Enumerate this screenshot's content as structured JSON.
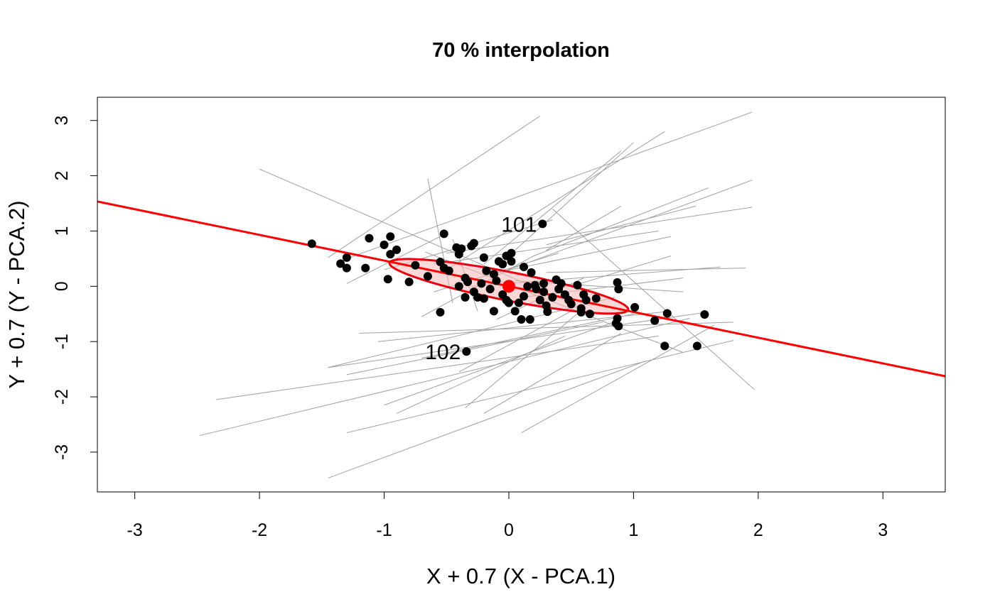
{
  "chart_data": {
    "type": "scatter",
    "title": "70 % interpolation",
    "xlabel": "X + 0.7 (X - PCA.1)",
    "ylabel": "Y + 0.7 (Y - PCA.2)",
    "xlim": [
      -3.3,
      3.5
    ],
    "ylim": [
      -3.72,
      3.42
    ],
    "x_ticks": [
      -3,
      -2,
      -1,
      0,
      1,
      2,
      3
    ],
    "y_ticks": [
      -3,
      -2,
      -1,
      0,
      1,
      2,
      3
    ],
    "grid": false,
    "colors": {
      "points": "#000000",
      "segments": "#a0a0a0",
      "fit_line": "#ff0000",
      "ellipse_stroke": "#e8000f",
      "ellipse_fill": "#f6b8b8",
      "center": "#ff0000"
    },
    "fit_line": {
      "intercept": 0.0,
      "slope": -0.465
    },
    "ellipse": {
      "center": [
        0,
        0
      ],
      "semi_axis_major": 1.05,
      "semi_axis_minor": 0.24,
      "angle_deg": -24.94
    },
    "center_point": [
      0,
      0
    ],
    "points": [
      [
        -1.58,
        0.77
      ],
      [
        -1.3,
        0.52
      ],
      [
        -1.35,
        0.41
      ],
      [
        -1.3,
        0.33
      ],
      [
        -1.15,
        0.33
      ],
      [
        -1.12,
        0.87
      ],
      [
        -1.0,
        0.75
      ],
      [
        -0.95,
        0.9
      ],
      [
        -0.9,
        0.66
      ],
      [
        -0.95,
        0.58
      ],
      [
        -0.97,
        0.13
      ],
      [
        -0.8,
        0.08
      ],
      [
        -0.75,
        0.38
      ],
      [
        -0.65,
        0.18
      ],
      [
        -0.55,
        0.44
      ],
      [
        -0.55,
        -0.47
      ],
      [
        -0.52,
        0.95
      ],
      [
        -0.52,
        0.33
      ],
      [
        -0.48,
        0.28
      ],
      [
        -0.42,
        0.7
      ],
      [
        -0.4,
        0.58
      ],
      [
        -0.38,
        0.68
      ],
      [
        -0.35,
        0.15
      ],
      [
        -0.33,
        0.08
      ],
      [
        -0.3,
        0.73
      ],
      [
        -0.28,
        0.78
      ],
      [
        -0.35,
        -0.2
      ],
      [
        -0.28,
        -0.1
      ],
      [
        -0.25,
        -0.2
      ],
      [
        -0.2,
        -0.22
      ],
      [
        -0.22,
        0.05
      ],
      [
        -0.18,
        0.28
      ],
      [
        -0.15,
        -0.05
      ],
      [
        -0.12,
        0.22
      ],
      [
        -0.1,
        0.1
      ],
      [
        -0.08,
        0.45
      ],
      [
        -0.05,
        0.4
      ],
      [
        -0.02,
        0.55
      ],
      [
        0.02,
        0.45
      ],
      [
        0.02,
        0.6
      ],
      [
        -0.05,
        -0.15
      ],
      [
        -0.02,
        -0.25
      ],
      [
        0.0,
        -0.3
      ],
      [
        0.05,
        -0.45
      ],
      [
        0.08,
        -0.3
      ],
      [
        0.12,
        -0.18
      ],
      [
        0.15,
        0.0
      ],
      [
        0.18,
        0.25
      ],
      [
        0.22,
        -0.05
      ],
      [
        0.25,
        -0.25
      ],
      [
        0.28,
        -0.1
      ],
      [
        0.3,
        -0.35
      ],
      [
        0.35,
        -0.2
      ],
      [
        0.38,
        0.12
      ],
      [
        0.4,
        -0.05
      ],
      [
        0.42,
        0.05
      ],
      [
        0.45,
        -0.15
      ],
      [
        0.48,
        -0.25
      ],
      [
        0.5,
        -0.32
      ],
      [
        0.55,
        0.02
      ],
      [
        0.58,
        -0.4
      ],
      [
        0.6,
        -0.15
      ],
      [
        0.62,
        -0.25
      ],
      [
        0.65,
        -0.5
      ],
      [
        0.7,
        -0.22
      ],
      [
        0.12,
        0.35
      ],
      [
        0.28,
        0.05
      ],
      [
        0.1,
        -0.6
      ],
      [
        0.17,
        -0.6
      ],
      [
        0.31,
        -0.46
      ],
      [
        0.21,
        0.02
      ],
      [
        -0.12,
        -0.45
      ],
      [
        -0.4,
        0.0
      ],
      [
        -0.2,
        0.52
      ],
      [
        0.58,
        -0.47
      ],
      [
        0.86,
        -0.67
      ],
      [
        0.88,
        -0.72
      ],
      [
        0.87,
        -0.58
      ],
      [
        0.87,
        0.07
      ],
      [
        0.88,
        -0.05
      ],
      [
        1.01,
        -0.38
      ],
      [
        1.17,
        -0.62
      ],
      [
        1.27,
        -0.49
      ],
      [
        1.57,
        -0.51
      ],
      [
        1.25,
        -1.08
      ],
      [
        1.51,
        -1.08
      ],
      [
        0.27,
        1.13
      ],
      [
        -0.34,
        -1.18
      ]
    ],
    "labels": [
      {
        "text": "101",
        "x": 0.27,
        "y": 1.13
      },
      {
        "text": "102",
        "x": -0.34,
        "y": -1.18
      }
    ],
    "segments": [
      [
        -2.0,
        2.12,
        0.55,
        -0.35
      ],
      [
        -2.48,
        -2.7,
        1.45,
        -0.58
      ],
      [
        -2.35,
        -2.05,
        1.2,
        -0.9
      ],
      [
        -1.45,
        -1.47,
        1.55,
        -0.48
      ],
      [
        -1.45,
        -1.47,
        0.85,
        -0.2
      ],
      [
        -1.3,
        -2.65,
        1.8,
        -0.98
      ],
      [
        -1.45,
        -3.47,
        1.1,
        -1.35
      ],
      [
        -1.0,
        -2.15,
        0.9,
        -0.6
      ],
      [
        -0.9,
        -2.3,
        0.45,
        -0.9
      ],
      [
        -0.2,
        -2.3,
        0.9,
        -0.85
      ],
      [
        0.1,
        -2.65,
        1.65,
        -0.7
      ],
      [
        -1.3,
        -1.6,
        0.75,
        -0.65
      ],
      [
        -1.05,
        -1.0,
        1.3,
        -0.45
      ],
      [
        -0.7,
        -1.3,
        1.0,
        -0.5
      ],
      [
        -0.4,
        -1.55,
        0.5,
        -0.45
      ],
      [
        -1.2,
        -0.85,
        1.8,
        -0.65
      ],
      [
        -0.35,
        -2.2,
        0.6,
        -0.4
      ],
      [
        0.35,
        1.4,
        1.97,
        -1.87
      ],
      [
        -0.67,
        0.62,
        1.4,
        -1.2
      ],
      [
        -1.45,
        0.52,
        0.25,
        3.08
      ],
      [
        -0.5,
        0.3,
        1.25,
        2.8
      ],
      [
        0.0,
        0.55,
        1.0,
        2.6
      ],
      [
        -1.3,
        0.5,
        1.95,
        3.15
      ],
      [
        -0.2,
        0.4,
        0.9,
        2.45
      ],
      [
        0.0,
        0.3,
        1.95,
        1.92
      ],
      [
        -0.5,
        0.6,
        1.95,
        1.43
      ],
      [
        0.2,
        0.55,
        1.6,
        1.78
      ],
      [
        0.3,
        0.75,
        1.5,
        1.45
      ],
      [
        -0.6,
        0.4,
        1.2,
        1.0
      ],
      [
        -1.0,
        0.3,
        0.35,
        1.2
      ],
      [
        -0.2,
        0.2,
        1.3,
        0.9
      ],
      [
        0.3,
        0.25,
        1.9,
        0.33
      ],
      [
        -0.3,
        0.0,
        1.7,
        0.35
      ],
      [
        0.05,
        0.1,
        1.4,
        -0.1
      ],
      [
        0.1,
        -0.2,
        1.4,
        0.15
      ],
      [
        -0.6,
        -0.1,
        0.4,
        0.6
      ],
      [
        -0.65,
        1.95,
        -0.45,
        -0.3
      ],
      [
        -0.45,
        0.85,
        -0.25,
        -0.45
      ],
      [
        -1.3,
        0.05,
        -0.55,
        0.9
      ],
      [
        0.3,
        0.65,
        0.9,
        1.45
      ],
      [
        -0.1,
        -0.6,
        0.6,
        0.15
      ],
      [
        -0.7,
        -0.55,
        0.2,
        0.55
      ],
      [
        0.5,
        0.0,
        1.3,
        0.55
      ]
    ]
  }
}
